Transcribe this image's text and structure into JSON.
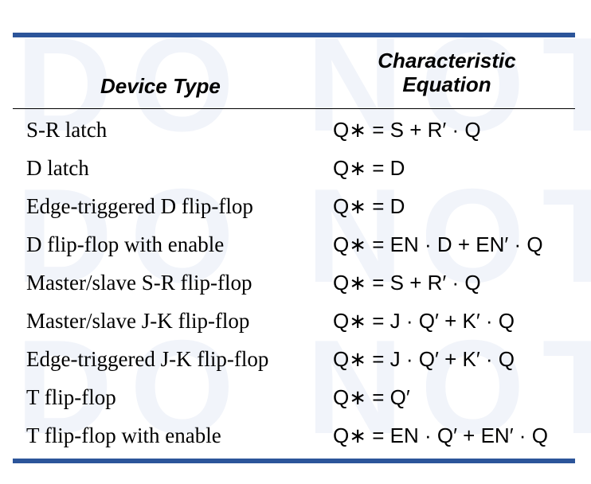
{
  "watermark": {
    "line_1": "DO NOT",
    "line_2": "DO NOT",
    "line_3": "DO NOT"
  },
  "colors": {
    "rule": "#2c559a",
    "watermark": "#f1f4fa",
    "text": "#000000"
  },
  "table": {
    "header": {
      "device_type": "Device Type",
      "equation": "Characteristic Equation"
    },
    "rows": [
      {
        "device": "S-R latch",
        "equation": "Q∗ = S + R′ · Q"
      },
      {
        "device": "D latch",
        "equation": "Q∗ = D"
      },
      {
        "device": "Edge-triggered D flip-flop",
        "equation": "Q∗ = D"
      },
      {
        "device": "D flip-flop with enable",
        "equation": "Q∗ = EN · D + EN′ · Q"
      },
      {
        "device": "Master/slave S-R flip-flop",
        "equation": "Q∗ = S + R′ · Q"
      },
      {
        "device": "Master/slave J-K flip-flop",
        "equation": "Q∗ = J · Q′ + K′ · Q"
      },
      {
        "device": "Edge-triggered J-K flip-flop",
        "equation": "Q∗ = J · Q′ + K′ · Q"
      },
      {
        "device": "T flip-flop",
        "equation": "Q∗ = Q′"
      },
      {
        "device": "T flip-flop with enable",
        "equation": "Q∗ = EN · Q′ + EN′ · Q"
      }
    ]
  }
}
